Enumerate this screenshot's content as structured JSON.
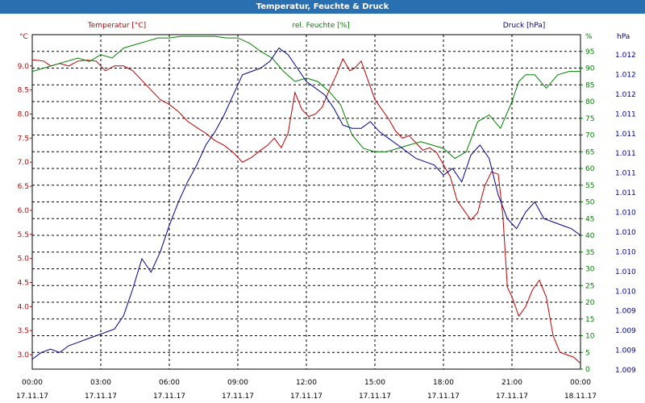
{
  "title": "Temperatur, Feuchte & Druck",
  "chart_data": {
    "type": "line",
    "title": "Temperatur, Feuchte & Druck",
    "x_tick_times": [
      "00:00",
      "03:00",
      "06:00",
      "09:00",
      "12:00",
      "15:00",
      "18:00",
      "21:00",
      "00:00"
    ],
    "x_tick_dates": [
      "17.11.17",
      "17.11.17",
      "17.11.17",
      "17.11.17",
      "17.11.17",
      "17.11.17",
      "17.11.17",
      "17.11.17",
      "18.11.17"
    ],
    "x_range_hours": [
      0,
      24
    ],
    "grid": true,
    "axes": {
      "temperature": {
        "unit_label": "°C",
        "ylim": [
          2.7,
          9.65
        ],
        "tick_labels": [
          "3.0",
          "3.5",
          "4.0",
          "4.5",
          "5.0",
          "5.5",
          "6.0",
          "6.5",
          "7.0",
          "7.5",
          "8.0",
          "8.5",
          "9.0"
        ],
        "tick_values": [
          3.0,
          3.5,
          4.0,
          4.5,
          5.0,
          5.5,
          6.0,
          6.5,
          7.0,
          7.5,
          8.0,
          8.5,
          9.0
        ],
        "color": "#c00000"
      },
      "humidity": {
        "unit_label": "%",
        "ylim": [
          0,
          100
        ],
        "tick_labels": [
          "0",
          "5",
          "10",
          "15",
          "20",
          "25",
          "30",
          "35",
          "40",
          "45",
          "50",
          "55",
          "60",
          "65",
          "70",
          "75",
          "80",
          "85",
          "90",
          "95"
        ],
        "tick_values": [
          0,
          5,
          10,
          15,
          20,
          25,
          30,
          35,
          40,
          45,
          50,
          55,
          60,
          65,
          70,
          75,
          80,
          85,
          90,
          95
        ],
        "color": "#008000"
      },
      "pressure": {
        "unit_label": "hPa",
        "ylim": [
          0,
          1
        ],
        "tick_labels": [
          "1.012",
          "1.012",
          "1.012",
          "1.011",
          "1.011",
          "1.011",
          "1.011",
          "1.011",
          "1.010",
          "1.010",
          "1.010",
          "1.010",
          "1.010",
          "1.009",
          "1.009",
          "1.009",
          "1.009"
        ],
        "color": "#00008b"
      }
    },
    "series": [
      {
        "name": "Temperatur [°C]",
        "axis": "temperature",
        "color": "#c00000",
        "x": [
          0,
          0.5,
          0.8,
          1.2,
          1.6,
          2.0,
          2.4,
          2.8,
          3.2,
          3.6,
          4.0,
          4.4,
          4.8,
          5.2,
          5.6,
          6.0,
          6.4,
          6.8,
          7.2,
          7.6,
          8.0,
          8.4,
          8.8,
          9.2,
          9.6,
          10.0,
          10.3,
          10.6,
          10.9,
          11.2,
          11.5,
          11.8,
          12.1,
          12.4,
          12.7,
          13.0,
          13.3,
          13.6,
          13.9,
          14.1,
          14.4,
          14.7,
          15.0,
          15.3,
          15.6,
          15.9,
          16.2,
          16.5,
          16.8,
          17.1,
          17.4,
          17.7,
          18.0,
          18.3,
          18.6,
          18.9,
          19.2,
          19.5,
          19.8,
          20.1,
          20.4,
          20.6,
          20.8,
          21.0,
          21.3,
          21.6,
          21.9,
          22.2,
          22.5,
          22.8,
          23.1,
          23.4,
          23.7,
          24.0
        ],
        "values": [
          9.13,
          9.1,
          9.0,
          9.05,
          9.0,
          9.1,
          9.12,
          9.1,
          8.9,
          9.0,
          9.0,
          8.9,
          8.7,
          8.5,
          8.3,
          8.2,
          8.05,
          7.85,
          7.72,
          7.6,
          7.45,
          7.35,
          7.2,
          7.0,
          7.1,
          7.25,
          7.35,
          7.5,
          7.3,
          7.6,
          8.45,
          8.1,
          7.95,
          8.0,
          8.15,
          8.5,
          8.8,
          9.15,
          8.9,
          8.95,
          9.1,
          8.7,
          8.3,
          8.1,
          7.9,
          7.65,
          7.5,
          7.55,
          7.4,
          7.25,
          7.3,
          7.2,
          6.95,
          6.7,
          6.2,
          6.0,
          5.8,
          5.95,
          6.5,
          6.8,
          6.75,
          5.9,
          4.4,
          4.2,
          3.8,
          4.0,
          4.35,
          4.55,
          4.2,
          3.4,
          3.05,
          3.0,
          2.95,
          2.82
        ]
      },
      {
        "name": "rel. Feuchte [%]",
        "axis": "humidity",
        "color": "#008000",
        "x": [
          0,
          0.5,
          1.0,
          1.5,
          2.0,
          2.5,
          3.0,
          3.5,
          4.0,
          4.5,
          5.0,
          5.5,
          6.0,
          6.5,
          7.0,
          7.5,
          8.0,
          8.5,
          9.0,
          9.5,
          10.0,
          10.5,
          11.0,
          11.5,
          12.0,
          12.5,
          13.0,
          13.5,
          14.0,
          14.5,
          15.0,
          15.5,
          16.0,
          16.5,
          17.0,
          17.5,
          18.0,
          18.5,
          19.0,
          19.5,
          20.0,
          20.5,
          21.0,
          21.3,
          21.6,
          22.0,
          22.5,
          23.0,
          23.5,
          24.0
        ],
        "values": [
          89,
          90,
          91,
          92,
          93,
          92,
          94,
          93,
          96,
          97,
          98,
          99,
          99,
          99.5,
          99.5,
          99.5,
          99.5,
          99,
          99,
          97.5,
          95,
          93,
          89,
          86,
          87,
          86,
          83,
          79,
          70,
          66,
          65,
          65,
          66,
          67,
          68,
          67,
          66,
          63,
          65,
          74,
          76,
          72,
          80,
          86,
          88,
          88,
          84,
          88,
          89,
          89
        ]
      },
      {
        "name": "Druck [hPa]",
        "axis": "pressure",
        "color": "#00008b",
        "x": [
          0,
          0.4,
          0.8,
          1.2,
          1.6,
          2.0,
          2.4,
          2.8,
          3.2,
          3.6,
          4.0,
          4.4,
          4.8,
          5.2,
          5.6,
          6.0,
          6.4,
          6.8,
          7.2,
          7.6,
          8.0,
          8.4,
          8.8,
          9.2,
          9.6,
          10.0,
          10.4,
          10.8,
          11.2,
          11.6,
          12.0,
          12.4,
          12.8,
          13.2,
          13.6,
          14.0,
          14.4,
          14.8,
          15.2,
          15.6,
          16.0,
          16.4,
          16.8,
          17.2,
          17.6,
          18.0,
          18.4,
          18.8,
          19.2,
          19.6,
          20.0,
          20.4,
          20.8,
          21.2,
          21.6,
          22.0,
          22.4,
          22.8,
          23.2,
          23.6,
          24.0
        ],
        "values": [
          0.03,
          0.05,
          0.06,
          0.05,
          0.07,
          0.08,
          0.09,
          0.1,
          0.11,
          0.12,
          0.16,
          0.24,
          0.33,
          0.29,
          0.35,
          0.43,
          0.5,
          0.56,
          0.61,
          0.67,
          0.71,
          0.76,
          0.82,
          0.88,
          0.89,
          0.9,
          0.92,
          0.96,
          0.94,
          0.9,
          0.86,
          0.84,
          0.82,
          0.78,
          0.73,
          0.72,
          0.72,
          0.74,
          0.71,
          0.69,
          0.67,
          0.65,
          0.63,
          0.62,
          0.61,
          0.58,
          0.6,
          0.56,
          0.64,
          0.67,
          0.63,
          0.52,
          0.45,
          0.42,
          0.47,
          0.5,
          0.45,
          0.44,
          0.43,
          0.42,
          0.4
        ]
      }
    ]
  }
}
